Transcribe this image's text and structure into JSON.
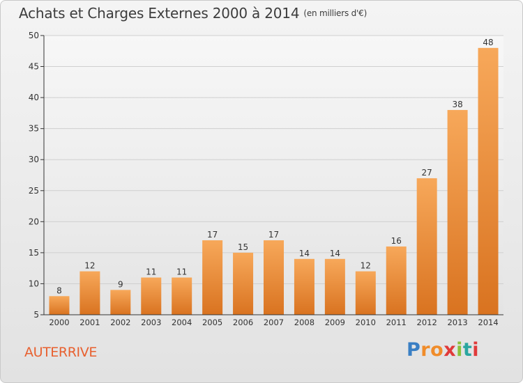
{
  "header": {
    "title": "Achats et Charges Externes 2000 à 2014",
    "unit": "(en milliers d'€)"
  },
  "footer": {
    "commune": "AUTERRIVE",
    "logo_letters": [
      "P",
      "r",
      "o",
      "x",
      "i",
      "t",
      "i"
    ],
    "logo_colors": [
      "#3a7fc4",
      "#f08c2a",
      "#f08c2a",
      "#e03a3a",
      "#8bc13a",
      "#2aa6a0",
      "#e03a3a"
    ]
  },
  "colors": {
    "bar_light": "#f7a85a",
    "bar_dark": "#d97320",
    "commune": "#e8602f"
  },
  "chart_data": {
    "type": "bar",
    "title": "Achats et Charges Externes 2000 à 2014",
    "subtitle": "(en milliers d'€)",
    "categories": [
      "2000",
      "2001",
      "2002",
      "2003",
      "2004",
      "2005",
      "2006",
      "2007",
      "2008",
      "2009",
      "2010",
      "2011",
      "2012",
      "2013",
      "2014"
    ],
    "values": [
      8,
      12,
      9,
      11,
      11,
      17,
      15,
      17,
      14,
      14,
      12,
      16,
      27,
      38,
      48
    ],
    "data_labels": [
      "8",
      "12",
      "9",
      "11",
      "11",
      "17",
      "15",
      "17",
      "14",
      "14",
      "12",
      "16",
      "27",
      "38",
      "48"
    ],
    "ylim": [
      5,
      50
    ],
    "yticks": [
      5,
      10,
      15,
      20,
      25,
      30,
      35,
      40,
      45,
      50
    ],
    "grid": true,
    "xlabel": "",
    "ylabel": ""
  }
}
